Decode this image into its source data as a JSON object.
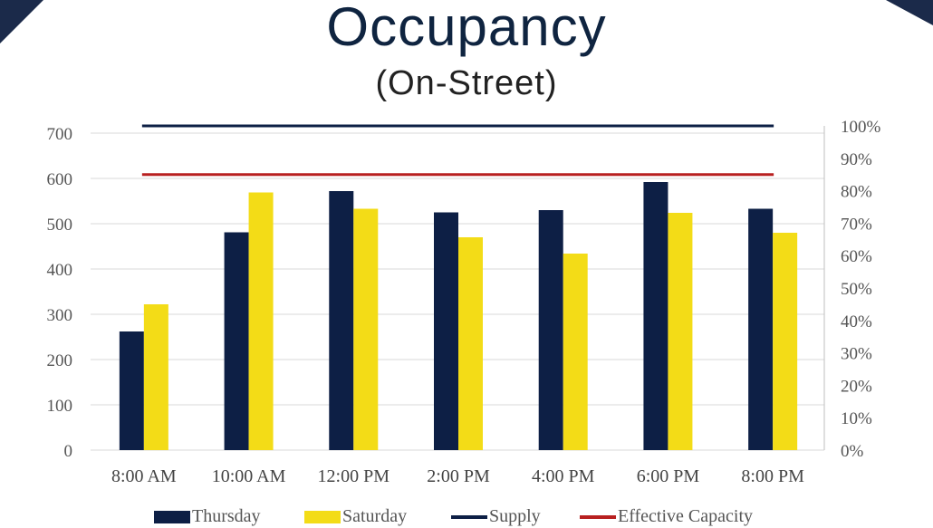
{
  "header": {
    "title": "Occupancy",
    "subtitle": "(On-Street)"
  },
  "colors": {
    "thursday": "#0d1f45",
    "saturday": "#f3dc17",
    "supply": "#0d1f45",
    "effective_capacity": "#b82020",
    "grid": "#d9d9d9"
  },
  "legend": {
    "thursday": "Thursday",
    "saturday": "Saturday",
    "supply": "Supply",
    "effective_capacity": "Effective Capacity"
  },
  "chart_data": {
    "type": "bar",
    "categories": [
      "8:00 AM",
      "10:00 AM",
      "12:00 PM",
      "2:00 PM",
      "4:00 PM",
      "6:00 PM",
      "8:00 PM"
    ],
    "series": [
      {
        "name": "Thursday",
        "values": [
          262,
          481,
          572,
          525,
          530,
          592,
          533
        ]
      },
      {
        "name": "Saturday",
        "values": [
          322,
          569,
          533,
          470,
          434,
          524,
          480
        ]
      }
    ],
    "lines": [
      {
        "name": "Supply",
        "axis": "secondary",
        "value": 100
      },
      {
        "name": "Effective Capacity",
        "axis": "secondary",
        "value": 85
      }
    ],
    "ylim": [
      0,
      700
    ],
    "yticks": [
      "0",
      "100",
      "200",
      "300",
      "400",
      "500",
      "600",
      "700"
    ],
    "y2lim": [
      0,
      100
    ],
    "y2ticks": [
      "0%",
      "10%",
      "20%",
      "30%",
      "40%",
      "50%",
      "60%",
      "70%",
      "80%",
      "90%",
      "100%"
    ],
    "grid": true,
    "legend_position": "bottom"
  }
}
